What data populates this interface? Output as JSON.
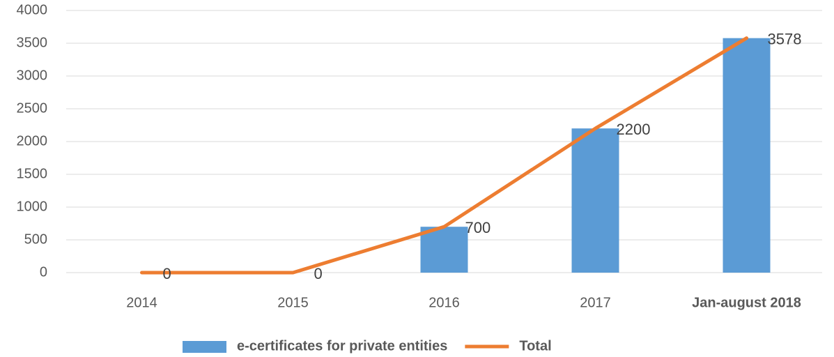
{
  "chart_data": {
    "type": "bar_line",
    "categories": [
      "2014",
      "2015",
      "2016",
      "2017",
      "Jan-august 2018"
    ],
    "series": [
      {
        "name": "e-certificates for private entities",
        "type": "bar",
        "color": "#5b9bd5",
        "values": [
          0,
          0,
          700,
          2200,
          3578
        ]
      },
      {
        "name": "Total",
        "type": "line",
        "color": "#ed7d31",
        "values": [
          0,
          0,
          700,
          2200,
          3578
        ]
      }
    ],
    "ylim": [
      0,
      4000
    ],
    "yticks": [
      0,
      500,
      1000,
      1500,
      2000,
      2500,
      3000,
      3500,
      4000
    ],
    "grid": true,
    "legend": "bottom"
  }
}
